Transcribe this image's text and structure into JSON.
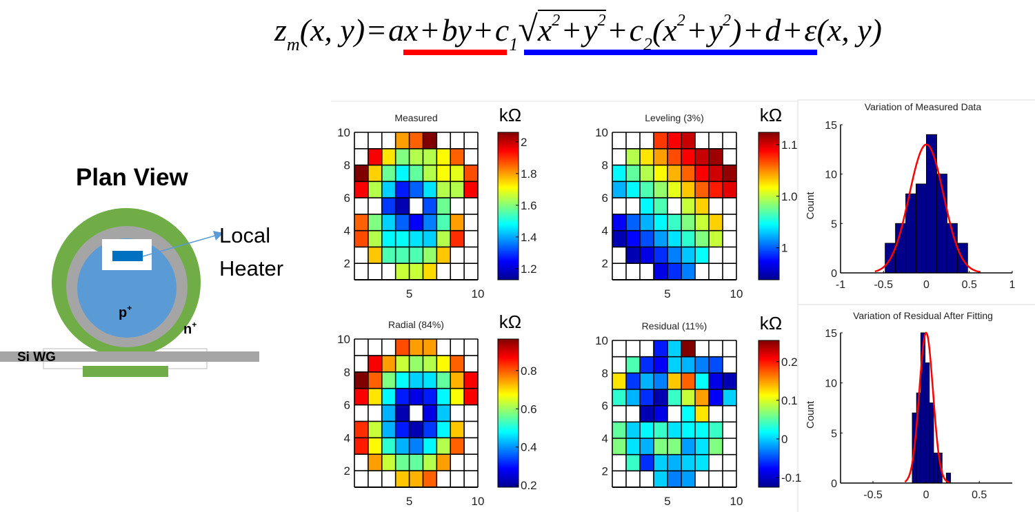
{
  "equation": {
    "parts": [
      "z",
      "m",
      "(x, y)",
      "=",
      "ax",
      "+",
      "by",
      "+",
      "c",
      "1",
      "√",
      "x",
      "2",
      "+",
      "y",
      "2",
      "+",
      "c",
      "2",
      "(x",
      "2",
      "+",
      "y",
      "2",
      ")",
      "+",
      "d",
      "+",
      "ε(x, y)"
    ],
    "underline_colors": {
      "linear": "#ff0000",
      "radial": "#0000ff"
    }
  },
  "diagram": {
    "title": "Plan View",
    "heater_label_line1": "Local",
    "heater_label_line2": "Heater",
    "p_label": "p",
    "p_sup": "+",
    "n_label": "n",
    "n_sup": "+",
    "waveguide_label": "Si WG",
    "colors": {
      "ring_outer": "#70ad47",
      "ring_mid": "#a5a5a5",
      "core": "#5b9bd5",
      "heater": "#0070c0",
      "arrow": "#5b9bd5"
    }
  },
  "chart_data": [
    {
      "type": "heatmap",
      "title": "Measured",
      "unit": "kΩ",
      "x": [
        1,
        2,
        3,
        4,
        5,
        6,
        7,
        8,
        9
      ],
      "y_rows_top_to_bottom": [
        9,
        8,
        7,
        6,
        5,
        4,
        3,
        2,
        1
      ],
      "xlim": [
        1,
        10
      ],
      "ylim": [
        1,
        10
      ],
      "xticks": [
        5,
        10
      ],
      "yticks": [
        2,
        4,
        6,
        8,
        10
      ],
      "clim": [
        1.13,
        2.06
      ],
      "cticks": [
        1.2,
        1.4,
        1.6,
        1.8,
        2
      ],
      "ctick_labels": [
        "1.2",
        "1.4",
        "1.6",
        "1.8",
        "2"
      ],
      "colormap": "jet",
      "value_encoding": "normalized level within clim",
      "levels": [
        [
          null,
          null,
          null,
          0.72,
          0.78,
          1.0,
          null,
          null,
          null
        ],
        [
          null,
          0.88,
          0.65,
          0.5,
          0.55,
          0.55,
          0.63,
          0.78,
          null
        ],
        [
          1.0,
          0.67,
          0.48,
          0.37,
          0.47,
          0.55,
          0.62,
          0.6,
          0.8
        ],
        [
          0.88,
          0.55,
          0.33,
          0.15,
          0.22,
          0.35,
          0.55,
          0.55,
          0.88
        ],
        [
          null,
          null,
          0.18,
          0.05,
          null,
          0.2,
          0.48,
          null,
          null
        ],
        [
          0.78,
          0.5,
          0.33,
          0.22,
          0.12,
          0.25,
          0.45,
          0.72,
          null
        ],
        [
          0.8,
          0.55,
          0.37,
          0.38,
          0.35,
          0.33,
          0.55,
          0.83,
          null
        ],
        [
          null,
          0.68,
          0.45,
          0.45,
          0.45,
          0.52,
          0.68,
          null,
          null
        ],
        [
          null,
          null,
          null,
          0.57,
          0.57,
          0.66,
          null,
          null,
          null
        ]
      ]
    },
    {
      "type": "heatmap",
      "title": "Leveling (3%)",
      "unit": "kΩ",
      "x": [
        1,
        2,
        3,
        4,
        5,
        6,
        7,
        8,
        9
      ],
      "y_rows_top_to_bottom": [
        9,
        8,
        7,
        6,
        5,
        4,
        3,
        2,
        1
      ],
      "xlim": [
        1,
        10
      ],
      "ylim": [
        1,
        10
      ],
      "xticks": [
        5,
        10
      ],
      "yticks": [
        2,
        4,
        6,
        8,
        10
      ],
      "clim": [
        0.969,
        1.112
      ],
      "cticks": [
        1,
        1.05,
        1.1
      ],
      "ctick_labels": [
        "1",
        "1.0",
        "1.1"
      ],
      "colormap": "jet",
      "value_encoding": "normalized level within clim",
      "levels": [
        [
          null,
          null,
          null,
          0.82,
          0.88,
          0.93,
          null,
          null,
          null
        ],
        [
          null,
          0.55,
          0.65,
          0.72,
          0.8,
          0.88,
          0.93,
          0.97,
          null
        ],
        [
          0.37,
          0.47,
          0.55,
          0.63,
          0.7,
          0.78,
          0.88,
          0.92,
          0.98
        ],
        [
          0.3,
          0.37,
          0.45,
          0.52,
          0.6,
          0.68,
          0.78,
          0.85,
          0.9
        ],
        [
          null,
          null,
          0.37,
          0.45,
          null,
          0.57,
          0.67,
          null,
          null
        ],
        [
          0.12,
          0.22,
          0.3,
          0.37,
          0.43,
          0.5,
          0.57,
          0.67,
          null
        ],
        [
          0.05,
          0.13,
          0.2,
          0.28,
          0.35,
          0.42,
          0.5,
          0.57,
          null
        ],
        [
          null,
          0.05,
          0.1,
          0.17,
          0.25,
          0.32,
          0.38,
          null,
          null
        ],
        [
          null,
          null,
          null,
          0.1,
          0.17,
          0.25,
          null,
          null,
          null
        ]
      ]
    },
    {
      "type": "heatmap",
      "title": "Radial (84%)",
      "unit": "kΩ",
      "x": [
        1,
        2,
        3,
        4,
        5,
        6,
        7,
        8,
        9
      ],
      "y_rows_top_to_bottom": [
        9,
        8,
        7,
        6,
        5,
        4,
        3,
        2,
        1
      ],
      "xlim": [
        1,
        10
      ],
      "ylim": [
        1,
        10
      ],
      "xticks": [
        5,
        10
      ],
      "yticks": [
        2,
        4,
        6,
        8,
        10
      ],
      "clim": [
        0.19,
        0.965
      ],
      "cticks": [
        0.2,
        0.4,
        0.6,
        0.8
      ],
      "ctick_labels": [
        "0.2",
        "0.4",
        "0.6",
        "0.8"
      ],
      "colormap": "jet",
      "value_encoding": "normalized level within clim",
      "levels": [
        [
          null,
          null,
          null,
          0.8,
          0.72,
          0.72,
          null,
          null,
          null
        ],
        [
          null,
          0.88,
          0.72,
          0.57,
          0.52,
          0.55,
          0.63,
          0.78,
          null
        ],
        [
          1.0,
          0.78,
          0.5,
          0.38,
          0.33,
          0.35,
          0.47,
          0.7,
          0.88
        ],
        [
          0.88,
          0.65,
          0.37,
          0.15,
          0.1,
          0.15,
          0.37,
          0.62,
          0.88
        ],
        [
          null,
          null,
          0.3,
          0.05,
          null,
          0.1,
          0.32,
          null,
          null
        ],
        [
          0.83,
          0.57,
          0.3,
          0.15,
          0.05,
          0.18,
          0.37,
          0.68,
          null
        ],
        [
          0.85,
          0.63,
          0.42,
          0.3,
          0.25,
          0.37,
          0.55,
          0.78,
          null
        ],
        [
          null,
          0.72,
          0.57,
          0.48,
          0.47,
          0.55,
          0.72,
          null,
          null
        ],
        [
          null,
          null,
          null,
          0.68,
          0.7,
          0.78,
          null,
          null,
          null
        ]
      ]
    },
    {
      "type": "heatmap",
      "title": "Residual (11%)",
      "unit": "kΩ",
      "x": [
        1,
        2,
        3,
        4,
        5,
        6,
        7,
        8,
        9
      ],
      "y_rows_top_to_bottom": [
        9,
        8,
        7,
        6,
        5,
        4,
        3,
        2,
        1
      ],
      "xlim": [
        1,
        10
      ],
      "ylim": [
        1,
        10
      ],
      "xticks": [
        5,
        10
      ],
      "yticks": [
        2,
        4,
        6,
        8,
        10
      ],
      "clim": [
        -0.125,
        0.255
      ],
      "cticks": [
        -0.1,
        0,
        0.1,
        0.2
      ],
      "ctick_labels": [
        "-0.1",
        "0",
        "0.1",
        "0.2"
      ],
      "colormap": "jet",
      "value_encoding": "normalized level within clim",
      "levels": [
        [
          null,
          null,
          null,
          0.15,
          0.33,
          1.0,
          null,
          null,
          null
        ],
        [
          null,
          0.45,
          0.17,
          0.12,
          0.33,
          0.3,
          0.25,
          0.2,
          null
        ],
        [
          0.65,
          0.18,
          0.3,
          0.25,
          0.68,
          0.78,
          0.38,
          0.1,
          0.05
        ],
        [
          0.42,
          0.3,
          0.17,
          0.05,
          0.43,
          0.57,
          0.72,
          0.12,
          0.33
        ],
        [
          null,
          null,
          0.05,
          0.1,
          null,
          0.38,
          0.65,
          null,
          null
        ],
        [
          0.47,
          0.33,
          0.37,
          0.43,
          0.35,
          0.37,
          0.38,
          0.43,
          null
        ],
        [
          0.5,
          0.35,
          0.3,
          0.5,
          0.5,
          0.28,
          0.35,
          0.5,
          null
        ],
        [
          null,
          0.43,
          0.17,
          0.33,
          0.3,
          0.33,
          0.35,
          null,
          null
        ],
        [
          null,
          null,
          null,
          0.33,
          0.25,
          0.28,
          null,
          null,
          null
        ]
      ]
    },
    {
      "type": "bar",
      "title": "Variation of Measured Data",
      "ylabel": "Count",
      "xlabel": "",
      "bin_edges": [
        -0.48,
        -0.36,
        -0.24,
        -0.12,
        0,
        0.12,
        0.24,
        0.36,
        0.48
      ],
      "values": [
        3,
        5,
        8,
        9,
        14,
        10,
        5,
        3
      ],
      "xlim": [
        -1,
        1
      ],
      "ylim": [
        0,
        15
      ],
      "xticks": [
        -1,
        -0.5,
        0,
        0.5,
        1
      ],
      "xtick_labels": [
        "-1",
        "-0.5",
        "0",
        "0.5",
        "1"
      ],
      "yticks": [
        0,
        5,
        10,
        15
      ],
      "ytick_labels": [
        "0",
        "5",
        "10",
        "15"
      ],
      "fit": {
        "type": "gaussian",
        "peak": 13,
        "mean": 0.0,
        "sigma": 0.2,
        "range": [
          -0.6,
          0.63
        ],
        "color": "#ff0000"
      },
      "bar_color": "#00008b"
    },
    {
      "type": "bar",
      "title": "Variation of Residual After Fitting",
      "ylabel": "Count",
      "xlabel": "",
      "bin_edges": [
        -0.13,
        -0.09,
        -0.05,
        -0.01,
        0.03,
        0.07,
        0.11,
        0.15,
        0.19,
        0.23
      ],
      "values": [
        7,
        9,
        15,
        12,
        8,
        3,
        3,
        0,
        1
      ],
      "xlim": [
        -0.805,
        0.81
      ],
      "ylim": [
        0,
        15
      ],
      "xticks": [
        -0.5,
        0,
        0.5
      ],
      "xtick_labels": [
        "-0.5",
        "0",
        "0.5"
      ],
      "yticks": [
        0,
        5,
        10,
        15
      ],
      "ytick_labels": [
        "0",
        "5",
        "10",
        "15"
      ],
      "fit": {
        "type": "gaussian",
        "peak": 15,
        "mean": 0.0,
        "sigma": 0.065,
        "range": [
          -0.2,
          0.22
        ],
        "color": "#ff0000"
      },
      "bar_color": "#00008b"
    }
  ]
}
